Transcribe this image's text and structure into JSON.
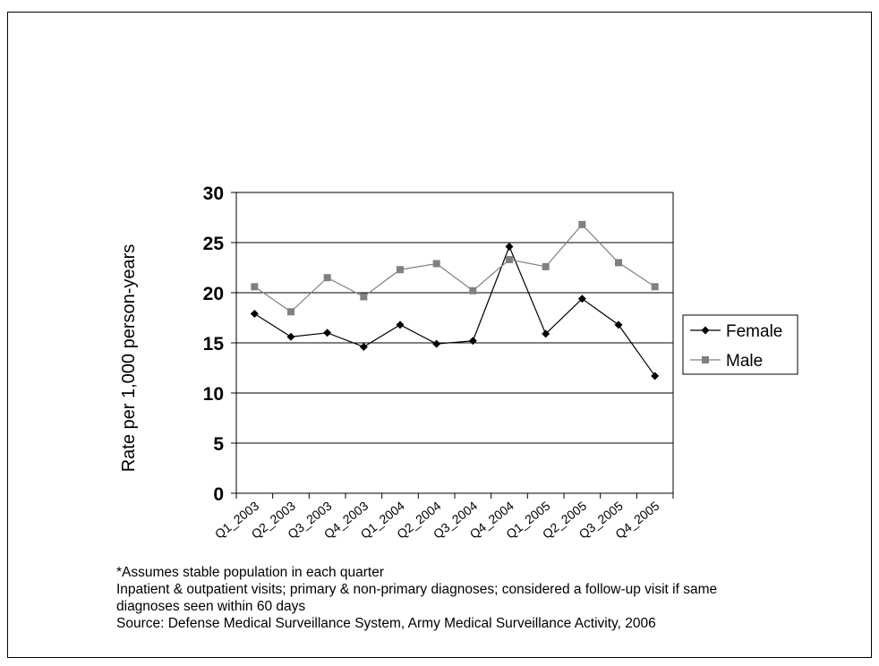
{
  "chart_data": {
    "type": "line",
    "title": "",
    "xlabel": "",
    "ylabel": "Rate per 1,000 person-years",
    "categories": [
      "Q1_2003",
      "Q2_2003",
      "Q3_2003",
      "Q4_2003",
      "Q1_2004",
      "Q2_2004",
      "Q3_2004",
      "Q4_2004",
      "Q1_2005",
      "Q2_2005",
      "Q3_2005",
      "Q4_2005"
    ],
    "y_ticks": [
      "0",
      "5",
      "10",
      "15",
      "20",
      "25",
      "30"
    ],
    "ylim": [
      0,
      30
    ],
    "grid": true,
    "legend_position": "right",
    "series": [
      {
        "name": "Female",
        "color": "#000000",
        "marker": "diamond",
        "values": [
          17.9,
          15.6,
          16.0,
          14.6,
          16.8,
          14.9,
          15.2,
          24.6,
          15.9,
          19.4,
          16.8,
          11.7
        ]
      },
      {
        "name": "Male",
        "color": "#808080",
        "marker": "square",
        "values": [
          20.6,
          18.1,
          21.5,
          19.6,
          22.3,
          22.9,
          20.2,
          23.3,
          22.6,
          26.8,
          23.0,
          20.6
        ]
      }
    ]
  },
  "notes": {
    "line1": "*Assumes stable population in each quarter",
    "line2": "Inpatient & outpatient visits; primary & non-primary diagnoses; considered a follow-up visit if same",
    "line3": "diagnoses seen within 60 days",
    "line4": "Source: Defense Medical Surveillance System, Army Medical Surveillance Activity, 2006"
  }
}
